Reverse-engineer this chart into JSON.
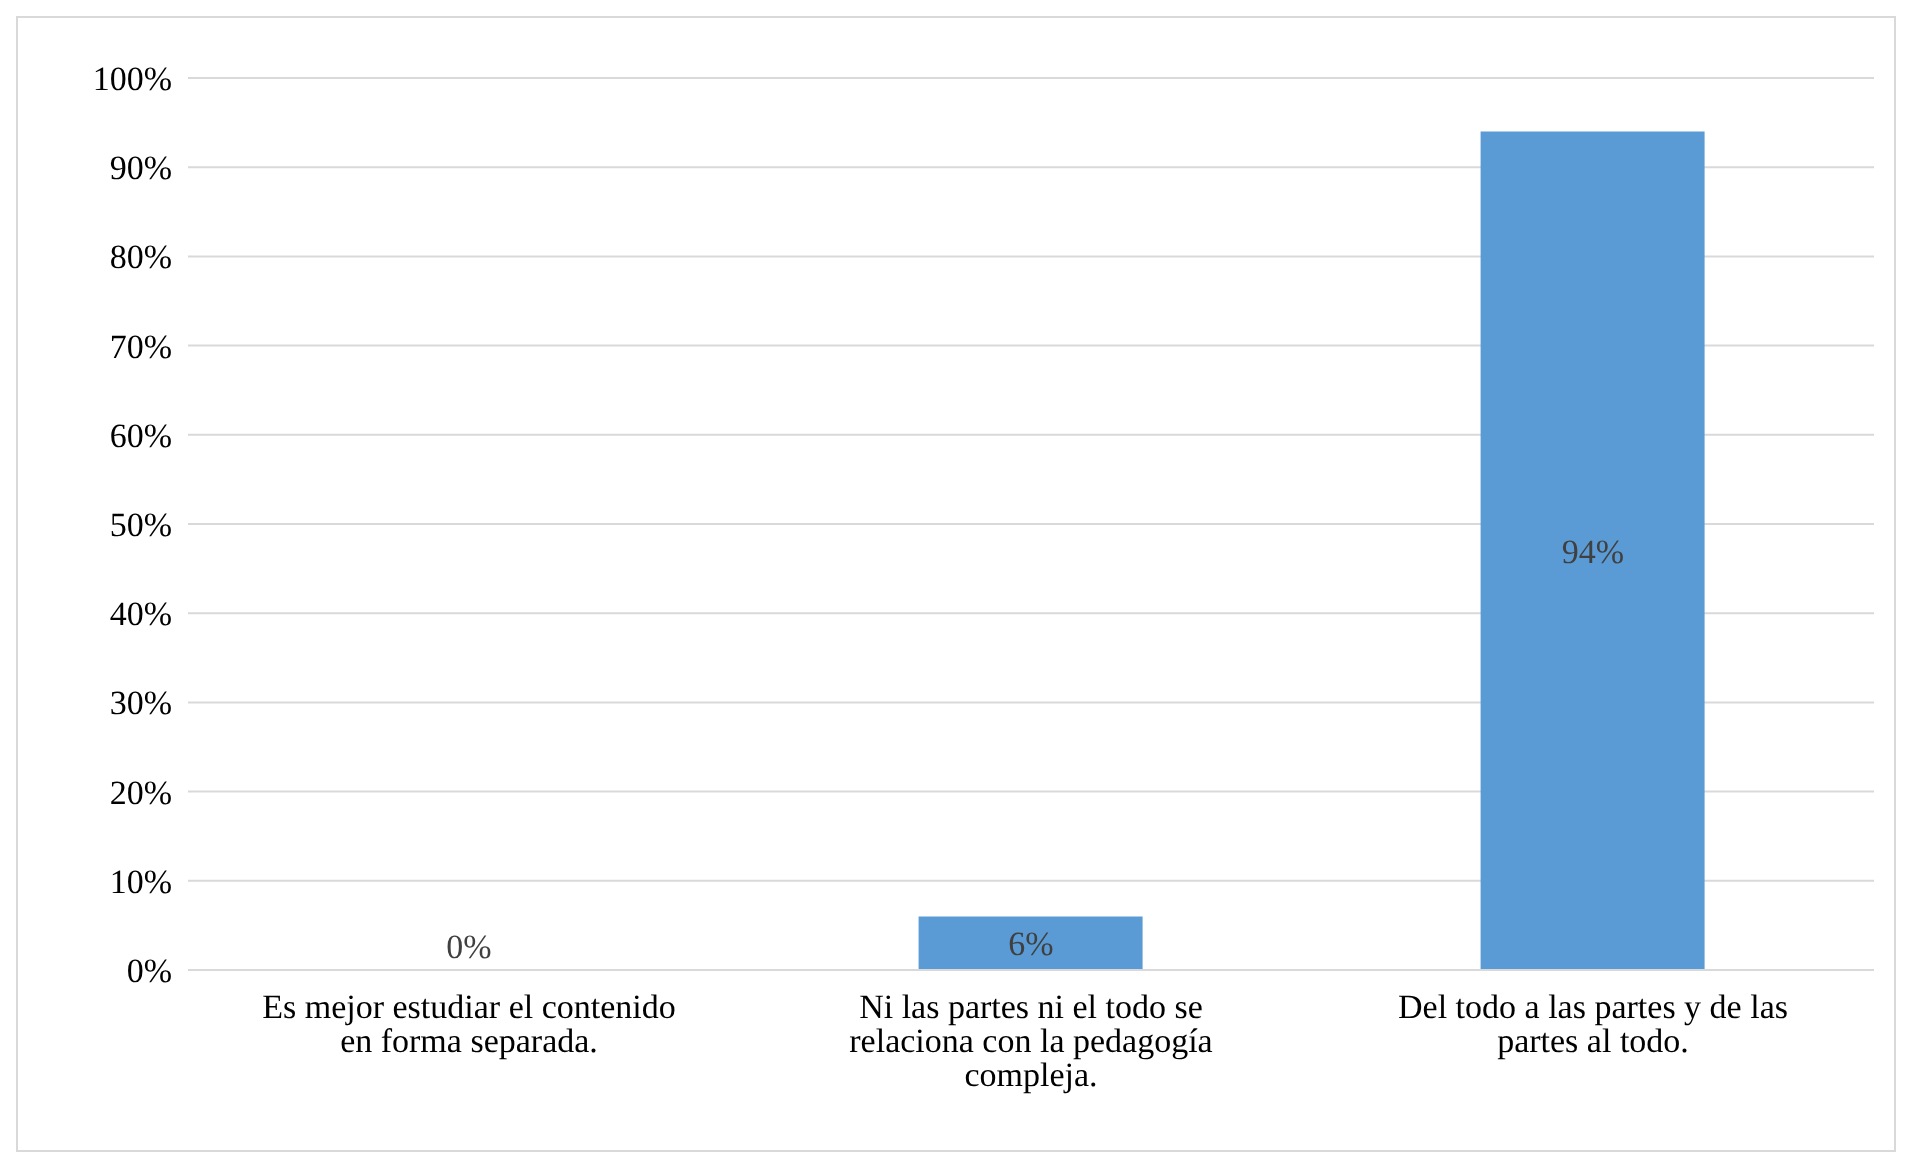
{
  "chart_data": {
    "type": "bar",
    "categories": [
      "Es mejor estudiar el contenido en forma separada.",
      "Ni las partes ni el todo se relaciona con la pedagogía compleja.",
      "Del todo a las partes y de las partes al todo."
    ],
    "values": [
      0,
      6,
      94
    ],
    "color": "#5b9bd5",
    "value_labels": [
      "0%",
      "6%",
      "94%"
    ],
    "ylim": [
      0,
      100
    ],
    "yticks": [
      {
        "value": 0,
        "label": "0%"
      },
      {
        "value": 10,
        "label": "10%"
      },
      {
        "value": 20,
        "label": "20%"
      },
      {
        "value": 30,
        "label": "30%"
      },
      {
        "value": 40,
        "label": "40%"
      },
      {
        "value": 50,
        "label": "50%"
      },
      {
        "value": 60,
        "label": "60%"
      },
      {
        "value": 70,
        "label": "70%"
      },
      {
        "value": 80,
        "label": "80%"
      },
      {
        "value": 90,
        "label": "90%"
      },
      {
        "value": 100,
        "label": "100%"
      }
    ],
    "grid": "y"
  }
}
